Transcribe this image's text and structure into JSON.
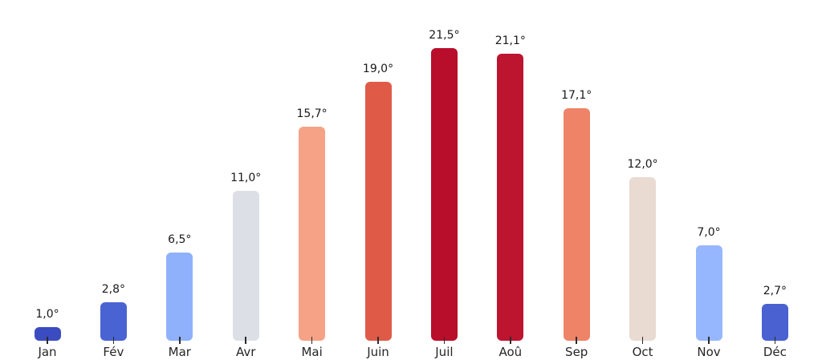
{
  "chart_data": {
    "type": "bar",
    "title": "",
    "xlabel": "",
    "ylabel": "",
    "categories": [
      "Jan",
      "Fév",
      "Mar",
      "Avr",
      "Mai",
      "Juin",
      "Juil",
      "Aoû",
      "Sep",
      "Oct",
      "Nov",
      "Déc"
    ],
    "values": [
      1.0,
      2.8,
      6.5,
      11.0,
      15.7,
      19.0,
      21.5,
      21.1,
      17.1,
      12.0,
      7.0,
      2.7
    ],
    "value_labels": [
      "1,0°",
      "2,8°",
      "6,5°",
      "11,0°",
      "15,7°",
      "19,0°",
      "21,5°",
      "21,1°",
      "17,1°",
      "12,0°",
      "7,0°",
      "2,7°"
    ],
    "bar_colors": [
      "#3b4cc0",
      "#4a63d3",
      "#8fb1fc",
      "#dce0e6",
      "#f5a287",
      "#df5b47",
      "#b90d2c",
      "#bd1430",
      "#ee8367",
      "#e9dad2",
      "#96b7fd",
      "#4a61d1"
    ],
    "ylim": [
      0,
      23.5
    ],
    "grid": false,
    "axis_lines": false,
    "legend": null,
    "background_color": "#ffffff",
    "label_text_color": "#1a1a1a",
    "axis_text_color": "#262626",
    "tick_color": "#2b2b2b"
  }
}
